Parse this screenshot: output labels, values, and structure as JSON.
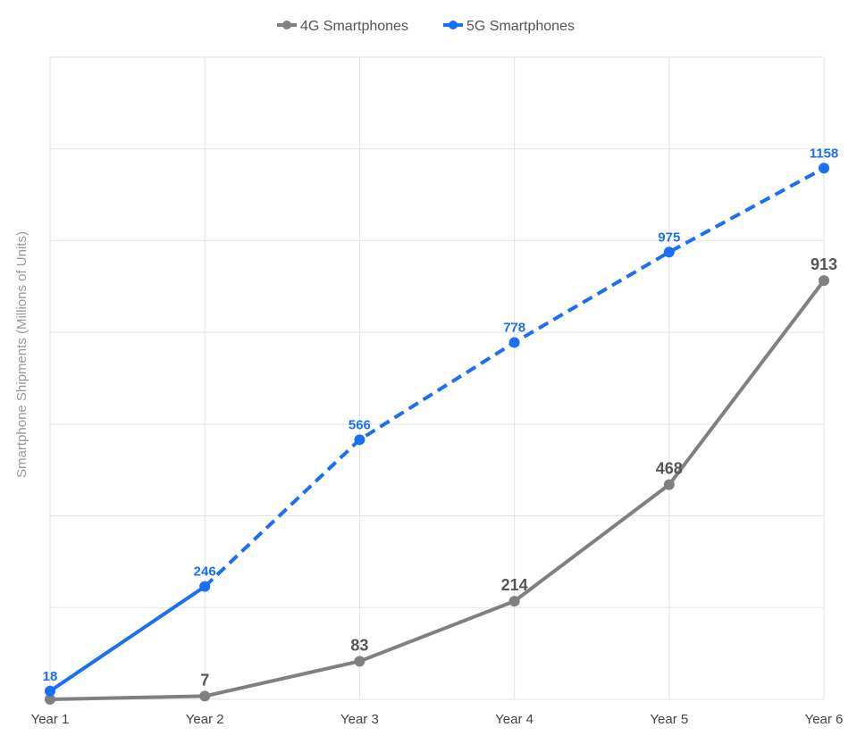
{
  "chart_data": {
    "type": "line",
    "title": "",
    "xlabel": "",
    "ylabel": "Smartphone Shipments (Millions of Units)",
    "categories": [
      "Year 1",
      "Year 2",
      "Year 3",
      "Year 4",
      "Year 5",
      "Year 6"
    ],
    "ylim": [
      0,
      1400
    ],
    "grid": true,
    "legend": "top-center",
    "series": [
      {
        "name": "4G Smartphones",
        "color": "#808080",
        "values": [
          0,
          7,
          83,
          214,
          468,
          913
        ],
        "labels": [
          null,
          "7",
          "83",
          "214",
          "468",
          "913"
        ],
        "line_style": "solid"
      },
      {
        "name": "5G Smartphones",
        "color": "#1a6ff5",
        "values": [
          18,
          246,
          566,
          778,
          975,
          1158
        ],
        "labels": [
          "18",
          "246",
          "566",
          "778",
          "975",
          "1158"
        ],
        "line_style": "solid for Year 1–Year 2, dashed thereafter"
      }
    ]
  }
}
